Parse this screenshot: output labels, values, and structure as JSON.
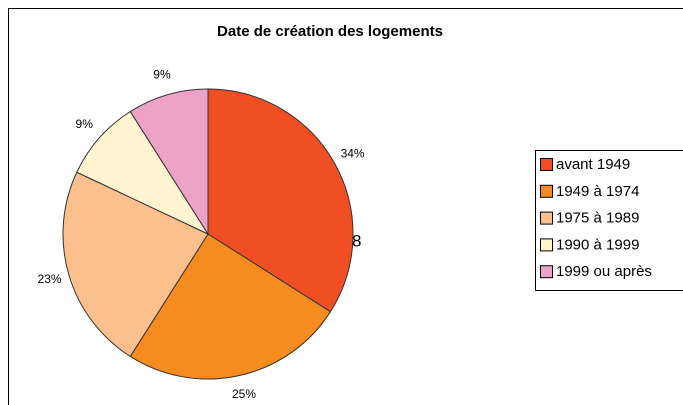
{
  "chart_data": {
    "type": "pie",
    "title": "Date de création des logements",
    "categories": [
      "avant 1949",
      "1949 à 1974",
      "1975 à 1989",
      "1990 à 1999",
      "1999 ou après"
    ],
    "values": [
      34,
      25,
      23,
      9,
      9
    ],
    "value_labels": [
      "34%",
      "25%",
      "23%",
      "9%",
      "9%"
    ],
    "colors": [
      "#f04e23",
      "#f68b1f",
      "#fbc08e",
      "#fef5d0",
      "#eda2c8"
    ],
    "annotation": "58",
    "legend": "right"
  }
}
